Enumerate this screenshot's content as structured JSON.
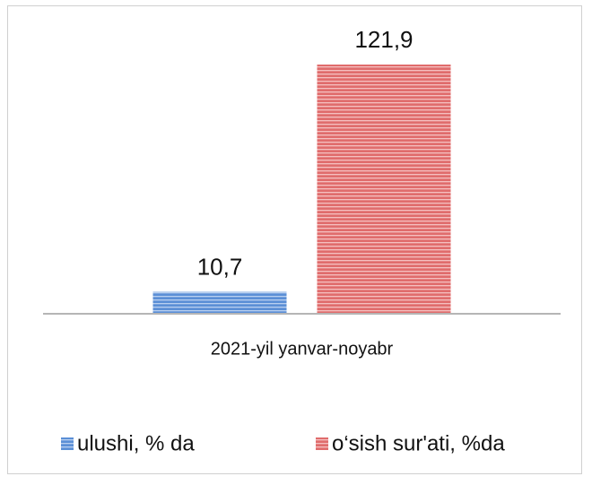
{
  "chart_data": {
    "type": "bar",
    "categories": [
      "2021-yil yanvar-noyabr"
    ],
    "series": [
      {
        "name": "ulushi, % da",
        "color": "#5b8fd6",
        "values": [
          10.7
        ],
        "value_labels": [
          "10,7"
        ]
      },
      {
        "name": "o‘sish sur'ati, %da",
        "color": "#e06c6c",
        "values": [
          121.9
        ],
        "value_labels": [
          "121,9"
        ]
      }
    ]
  }
}
